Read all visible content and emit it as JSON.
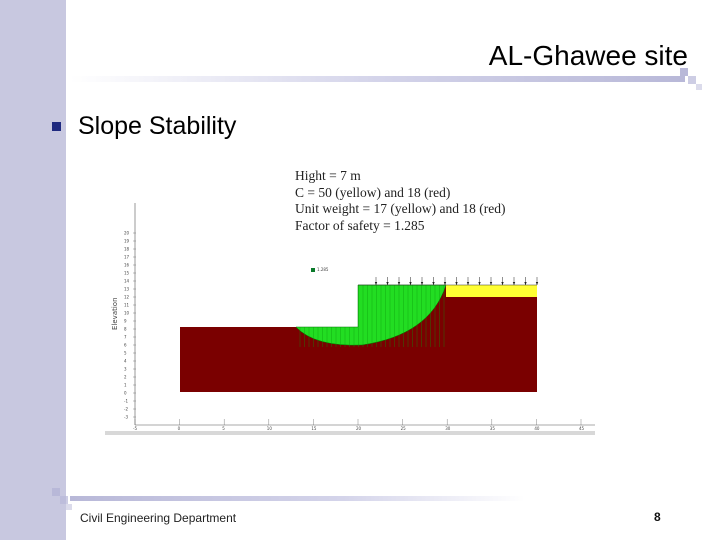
{
  "slide": {
    "title": "AL-Ghawee site",
    "bullet": "Slope Stability",
    "footer": "Civil Engineering Department",
    "page_number": "8"
  },
  "figure": {
    "info_lines": [
      "Hight = 7 m",
      "C = 50 (yellow) and 18 (red)",
      "Unit weight = 17 (yellow) and 18 (red)",
      "Factor of safety = 1.285"
    ],
    "y_axis_label": "Elevation",
    "y_ticks": [
      "20",
      "19",
      "18",
      "17",
      "16",
      "15",
      "14",
      "13",
      "12",
      "11",
      "10",
      "9",
      "8",
      "7",
      "6",
      "5",
      "4",
      "3",
      "2",
      "1",
      "0",
      "-1",
      "-2",
      "-3"
    ],
    "x_ticks": [
      "-5",
      "0",
      "5",
      "10",
      "15",
      "20",
      "25",
      "30",
      "35",
      "40",
      "45"
    ],
    "fs_marker": "1.285",
    "colors": {
      "red_soil": "#7a0000",
      "yellow_layer": "#ffff33",
      "slip_mass": "#22dd22",
      "bullet": "#1f2a80",
      "accent_bar": "#c8c8e0"
    }
  }
}
